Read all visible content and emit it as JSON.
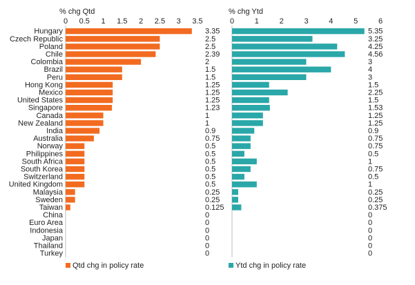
{
  "chart_data": [
    {
      "type": "bar",
      "orientation": "horizontal",
      "title": "% chg Qtd",
      "xlim": [
        0,
        3.5
      ],
      "xticks": [
        "0",
        "0.5",
        "1",
        "1.5",
        "2",
        "2.5",
        "3",
        "3.5"
      ],
      "color": "#f26b21",
      "categories": [
        "Hungary",
        "Czech Republic",
        "Poland",
        "Chile",
        "Colombia",
        "Brazil",
        "Peru",
        "Hong Kong",
        "Mexico",
        "United States",
        "Singapore",
        "Canada",
        "New Zealand",
        "India",
        "Australia",
        "Norway",
        "Philippines",
        "South Africa",
        "South Korea",
        "Switzerland",
        "United Kingdom",
        "Malaysia",
        "Sweden",
        "Taiwan",
        "China",
        "Euro Area",
        "Indonesia",
        "Japan",
        "Thailand",
        "Turkey"
      ],
      "series": [
        {
          "name": "Qtd chg in policy rate",
          "values": [
            3.35,
            2.5,
            2.5,
            2.39,
            2,
            1.5,
            1.5,
            1.25,
            1.25,
            1.25,
            1.23,
            1,
            1,
            0.9,
            0.75,
            0.5,
            0.5,
            0.5,
            0.5,
            0.5,
            0.5,
            0.25,
            0.25,
            0.125,
            0,
            0,
            0,
            0,
            0,
            0
          ],
          "labels": [
            "3.35",
            "2.5",
            "2.5",
            "2.39",
            "2",
            "1.5",
            "1.5",
            "1.25",
            "1.25",
            "1.25",
            "1.23",
            "1",
            "1",
            "0.9",
            "0.75",
            "0.5",
            "0.5",
            "0.5",
            "0.5",
            "0.5",
            "0.5",
            "0.25",
            "0.25",
            "0.125",
            "0",
            "0",
            "0",
            "0",
            "0",
            "0"
          ]
        }
      ]
    },
    {
      "type": "bar",
      "orientation": "horizontal",
      "title": "% chg Ytd",
      "xlim": [
        0,
        6
      ],
      "xticks": [
        "0",
        "1",
        "2",
        "3",
        "4",
        "5",
        "6"
      ],
      "color": "#2aa7a9",
      "categories": [
        "Hungary",
        "Czech Republic",
        "Poland",
        "Chile",
        "Colombia",
        "Brazil",
        "Peru",
        "Hong Kong",
        "Mexico",
        "United States",
        "Singapore",
        "Canada",
        "New Zealand",
        "India",
        "Australia",
        "Norway",
        "Philippines",
        "South Africa",
        "South Korea",
        "Switzerland",
        "United Kingdom",
        "Malaysia",
        "Sweden",
        "Taiwan",
        "China",
        "Euro Area",
        "Indonesia",
        "Japan",
        "Thailand",
        "Turkey"
      ],
      "series": [
        {
          "name": "Ytd chg in policy rate",
          "values": [
            5.35,
            3.25,
            4.25,
            4.56,
            3,
            4,
            3,
            1.5,
            2.25,
            1.5,
            1.53,
            1.25,
            1.25,
            0.9,
            0.75,
            0.75,
            0.5,
            1,
            0.75,
            0.5,
            1,
            0.25,
            0.25,
            0.375,
            0,
            0,
            0,
            0,
            0,
            0
          ],
          "labels": [
            "5.35",
            "3.25",
            "4.25",
            "4.56",
            "3",
            "4",
            "3",
            "1.5",
            "2.25",
            "1.5",
            "1.53",
            "1.25",
            "1.25",
            "0.9",
            "0.75",
            "0.75",
            "0.5",
            "1",
            "0.75",
            "0.5",
            "1",
            "0.25",
            "0.25",
            "0.375",
            "0",
            "0",
            "0",
            "0",
            "0",
            "0"
          ]
        }
      ]
    }
  ]
}
